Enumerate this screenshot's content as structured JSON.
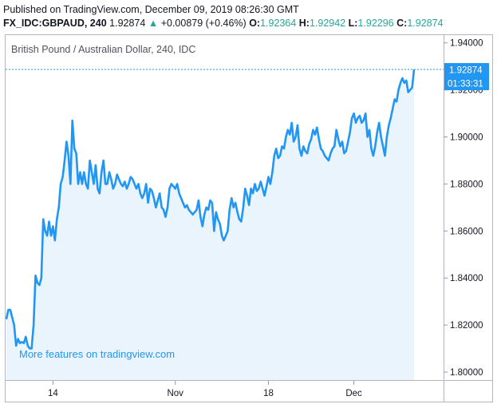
{
  "header": {
    "published": "Published on TradingView.com, December 09, 2019 08:26:30 GMT",
    "symbol": "FX_IDC:GBPAUD, 240",
    "last": "1.92874",
    "change_arrow": "▲",
    "change": "+0.00879 (+0.46%)",
    "open_label": "O:",
    "open": "1.92364",
    "high_label": "H:",
    "high": "1.92942",
    "low_label": "L:",
    "low": "1.92296",
    "close_label": "C:",
    "close": "1.92874"
  },
  "chart_data": {
    "type": "area",
    "title": "British Pound / Australian Dollar, 240, IDC",
    "xlabel": "",
    "ylabel": "",
    "ylim": [
      1.795,
      1.945
    ],
    "yticks": [
      1.8,
      1.82,
      1.84,
      1.86,
      1.88,
      1.9,
      1.92,
      1.94
    ],
    "ytick_labels": [
      "1.80000",
      "1.82000",
      "1.84000",
      "1.86000",
      "1.88000",
      "1.90000",
      "1.92000",
      "1.94000"
    ],
    "xtick_labels": [
      {
        "label": "14",
        "index": 24
      },
      {
        "label": "Nov",
        "index": 87
      },
      {
        "label": "18",
        "index": 135
      },
      {
        "label": "Dec",
        "index": 179
      }
    ],
    "values": [
      1.8225,
      1.8265,
      1.8265,
      1.8232,
      1.82,
      1.8112,
      1.8141,
      1.8123,
      1.8128,
      1.8123,
      1.815,
      1.8112,
      1.81,
      1.81,
      1.82,
      1.8411,
      1.838,
      1.837,
      1.84,
      1.865,
      1.86,
      1.858,
      1.864,
      1.858,
      1.862,
      1.856,
      1.865,
      1.87,
      1.88,
      1.883,
      1.89,
      1.898,
      1.892,
      1.88,
      1.907,
      1.895,
      1.893,
      1.88,
      1.885,
      1.88,
      1.885,
      1.88,
      1.878,
      1.89,
      1.885,
      1.88,
      1.888,
      1.878,
      1.876,
      1.885,
      1.89,
      1.88,
      1.88,
      1.885,
      1.882,
      1.878,
      1.88,
      1.884,
      1.882,
      1.88,
      1.879,
      1.881,
      1.878,
      1.88,
      1.883,
      1.882,
      1.88,
      1.878,
      1.88,
      1.876,
      1.874,
      1.876,
      1.88,
      1.872,
      1.878,
      1.877,
      1.874,
      1.87,
      1.873,
      1.876,
      1.87,
      1.869,
      1.866,
      1.87,
      1.878,
      1.88,
      1.879,
      1.878,
      1.88,
      1.876,
      1.874,
      1.872,
      1.87,
      1.871,
      1.869,
      1.868,
      1.867,
      1.868,
      1.869,
      1.873,
      1.866,
      1.862,
      1.867,
      1.87,
      1.869,
      1.873,
      1.872,
      1.86,
      1.868,
      1.865,
      1.863,
      1.858,
      1.856,
      1.858,
      1.86,
      1.869,
      1.874,
      1.87,
      1.872,
      1.868,
      1.865,
      1.864,
      1.87,
      1.878,
      1.875,
      1.871,
      1.878,
      1.876,
      1.88,
      1.877,
      1.878,
      1.881,
      1.878,
      1.875,
      1.879,
      1.883,
      1.88,
      1.885,
      1.892,
      1.895,
      1.891,
      1.892,
      1.896,
      1.895,
      1.9,
      1.903,
      1.901,
      1.906,
      1.898,
      1.9,
      1.905,
      1.895,
      1.892,
      1.896,
      1.894,
      1.893,
      1.897,
      1.899,
      1.903,
      1.901,
      1.904,
      1.899,
      1.895,
      1.894,
      1.892,
      1.891,
      1.89,
      1.893,
      1.895,
      1.896,
      1.903,
      1.899,
      1.896,
      1.898,
      1.893,
      1.894,
      1.898,
      1.902,
      1.908,
      1.91,
      1.906,
      1.908,
      1.909,
      1.906,
      1.907,
      1.91,
      1.9,
      1.903,
      1.895,
      1.892,
      1.896,
      1.902,
      1.906,
      1.9,
      1.896,
      1.892,
      1.9,
      1.905,
      1.908,
      1.912,
      1.916,
      1.915,
      1.92,
      1.923,
      1.925,
      1.923,
      1.924,
      1.919,
      1.92,
      1.921,
      1.9287
    ],
    "grid": false,
    "last_price_label": "1.92874",
    "countdown": "01:33:31",
    "colors": {
      "line": "#2196f3",
      "fill": "#eaf4fd",
      "badge": "#2196f3",
      "text": "#131722",
      "axis": "#9598a1",
      "up": "#26a69a"
    }
  },
  "watermark": "More features on tradingview.com"
}
